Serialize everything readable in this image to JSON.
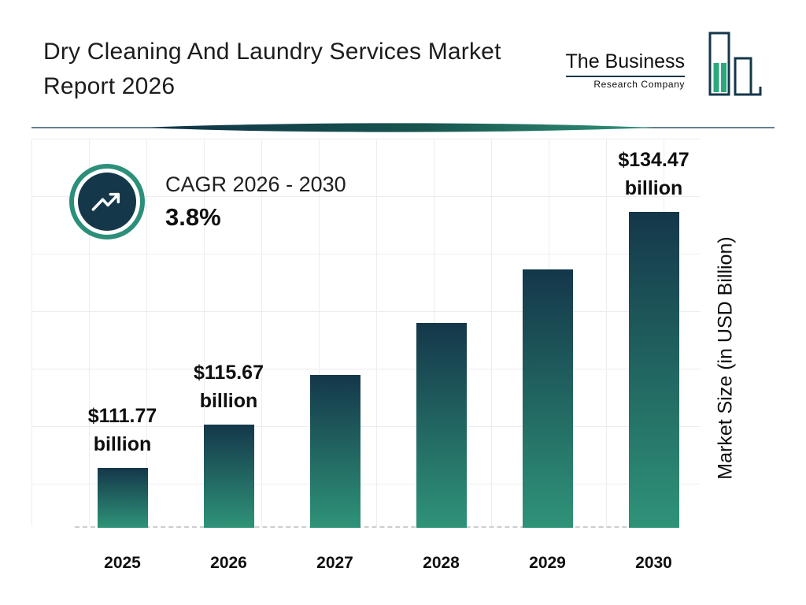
{
  "header": {
    "title": "Dry Cleaning And Laundry Services Market Report 2026",
    "logo": {
      "line1": "The Business",
      "line2": "Research Company"
    }
  },
  "cagr": {
    "label": "CAGR 2026 - 2030",
    "value": "3.8%"
  },
  "chart_data": {
    "type": "bar",
    "title": "Dry Cleaning And Laundry Services Market Report 2026",
    "xlabel": "",
    "ylabel": "Market Size (in USD Billion)",
    "unit": "USD Billion",
    "grid": true,
    "ylim": [
      106.5,
      136.5
    ],
    "categories": [
      "2025",
      "2026",
      "2027",
      "2028",
      "2029",
      "2030"
    ],
    "values": [
      111.77,
      115.67,
      120.06,
      124.62,
      129.36,
      134.47
    ],
    "value_labels": [
      {
        "value_text": "$111.77",
        "unit_text": "billion"
      },
      {
        "value_text": "$115.67",
        "unit_text": "billion"
      },
      null,
      null,
      null,
      {
        "value_text": "$134.47",
        "unit_text": "billion"
      }
    ],
    "bar_gradient": [
      "#14374a",
      "#2f9378"
    ]
  },
  "colors": {
    "navy": "#14374a",
    "teal": "#2f9378",
    "ring_teal": "#2b8f7a"
  }
}
